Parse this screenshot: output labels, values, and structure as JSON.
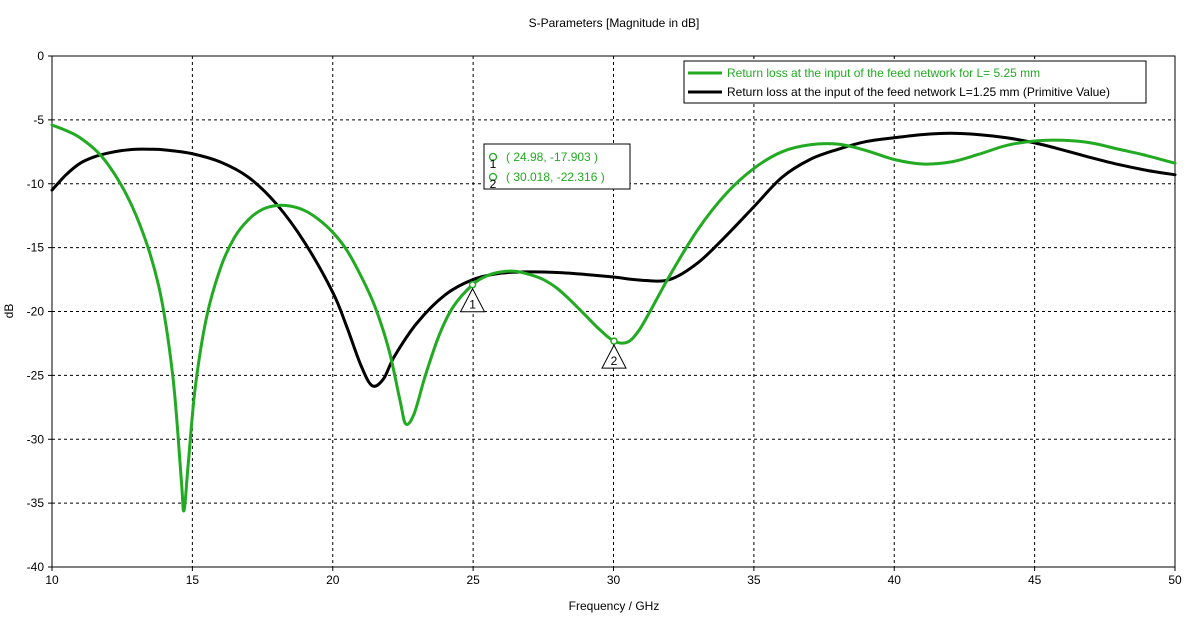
{
  "chart_data": {
    "type": "line",
    "title": "S-Parameters [Magnitude in dB]",
    "xlabel": "Frequency / GHz",
    "ylabel": "dB",
    "xlim": [
      10,
      50
    ],
    "ylim": [
      -40,
      0
    ],
    "x_ticks": [
      10,
      15,
      20,
      25,
      30,
      35,
      40,
      45,
      50
    ],
    "y_ticks": [
      0,
      -5,
      -10,
      -15,
      -20,
      -25,
      -30,
      -35,
      -40
    ],
    "grid": true,
    "legend_position": "top-right",
    "series": [
      {
        "name": "Return loss at the input of the feed network for L= 5.25 mm",
        "color": "#22aa22",
        "points": [
          [
            10,
            -5.4
          ],
          [
            11,
            -6.4
          ],
          [
            12,
            -8.5
          ],
          [
            13,
            -12.5
          ],
          [
            13.8,
            -18
          ],
          [
            14.3,
            -25
          ],
          [
            14.6,
            -33
          ],
          [
            14.7,
            -35.6
          ],
          [
            14.85,
            -32
          ],
          [
            15.1,
            -26
          ],
          [
            15.5,
            -20.5
          ],
          [
            16,
            -16.6
          ],
          [
            16.5,
            -14.2
          ],
          [
            17,
            -12.8
          ],
          [
            17.5,
            -12.0
          ],
          [
            18,
            -11.7
          ],
          [
            18.5,
            -11.75
          ],
          [
            19,
            -12.1
          ],
          [
            19.5,
            -12.8
          ],
          [
            20,
            -13.8
          ],
          [
            20.5,
            -15.2
          ],
          [
            21,
            -17.2
          ],
          [
            21.5,
            -19.6
          ],
          [
            22,
            -23
          ],
          [
            22.4,
            -27
          ],
          [
            22.6,
            -28.8
          ],
          [
            22.9,
            -28
          ],
          [
            23.3,
            -25
          ],
          [
            23.8,
            -21.8
          ],
          [
            24.3,
            -19.6
          ],
          [
            24.98,
            -17.903
          ],
          [
            25.5,
            -17.2
          ],
          [
            26,
            -16.9
          ],
          [
            26.5,
            -16.85
          ],
          [
            27,
            -17.1
          ],
          [
            27.5,
            -17.5
          ],
          [
            28,
            -18.2
          ],
          [
            28.5,
            -19.2
          ],
          [
            29,
            -20.3
          ],
          [
            29.5,
            -21.4
          ],
          [
            30.018,
            -22.316
          ],
          [
            30.5,
            -22.4
          ],
          [
            30.9,
            -21.5
          ],
          [
            31.3,
            -20
          ],
          [
            32,
            -17.2
          ],
          [
            33,
            -13.6
          ],
          [
            34,
            -10.8
          ],
          [
            35,
            -8.8
          ],
          [
            36,
            -7.5
          ],
          [
            37,
            -6.95
          ],
          [
            38,
            -6.9
          ],
          [
            39,
            -7.4
          ],
          [
            40,
            -8.1
          ],
          [
            41,
            -8.45
          ],
          [
            42,
            -8.3
          ],
          [
            43,
            -7.7
          ],
          [
            44,
            -7.0
          ],
          [
            45,
            -6.65
          ],
          [
            46,
            -6.6
          ],
          [
            47,
            -6.8
          ],
          [
            48,
            -7.3
          ],
          [
            49,
            -7.8
          ],
          [
            50,
            -8.4
          ]
        ]
      },
      {
        "name": "Return loss at the input of the feed network L=1.25 mm (Primitive Value)",
        "color": "#000000",
        "points": [
          [
            10,
            -10.5
          ],
          [
            10.5,
            -9.3
          ],
          [
            11,
            -8.4
          ],
          [
            11.5,
            -7.9
          ],
          [
            12,
            -7.6
          ],
          [
            12.5,
            -7.4
          ],
          [
            13,
            -7.3
          ],
          [
            13.5,
            -7.3
          ],
          [
            14,
            -7.35
          ],
          [
            15,
            -7.65
          ],
          [
            16,
            -8.3
          ],
          [
            17,
            -9.5
          ],
          [
            18,
            -11.6
          ],
          [
            19,
            -14.6
          ],
          [
            20,
            -18.5
          ],
          [
            20.5,
            -21.2
          ],
          [
            21,
            -24.2
          ],
          [
            21.4,
            -25.8
          ],
          [
            21.8,
            -25.3
          ],
          [
            22.2,
            -23.5
          ],
          [
            23,
            -20.9
          ],
          [
            24,
            -18.7
          ],
          [
            25,
            -17.5
          ],
          [
            26,
            -17.0
          ],
          [
            27,
            -16.9
          ],
          [
            28,
            -16.95
          ],
          [
            29,
            -17.1
          ],
          [
            30,
            -17.3
          ],
          [
            31,
            -17.55
          ],
          [
            32,
            -17.5
          ],
          [
            33,
            -16.2
          ],
          [
            34,
            -14.1
          ],
          [
            35,
            -11.8
          ],
          [
            36,
            -9.5
          ],
          [
            37,
            -8.1
          ],
          [
            38,
            -7.3
          ],
          [
            39,
            -6.7
          ],
          [
            40,
            -6.4
          ],
          [
            41,
            -6.15
          ],
          [
            42,
            -6.05
          ],
          [
            43,
            -6.15
          ],
          [
            44,
            -6.4
          ],
          [
            45,
            -6.8
          ],
          [
            46,
            -7.35
          ],
          [
            47,
            -7.95
          ],
          [
            48,
            -8.5
          ],
          [
            49,
            -8.95
          ],
          [
            50,
            -9.3
          ]
        ]
      }
    ],
    "markers": [
      {
        "id": "1",
        "x": 24.98,
        "y": -17.903,
        "label": "( 24.98, -17.903 )"
      },
      {
        "id": "2",
        "x": 30.018,
        "y": -22.316,
        "label": "( 30.018, -22.316 )"
      }
    ]
  }
}
